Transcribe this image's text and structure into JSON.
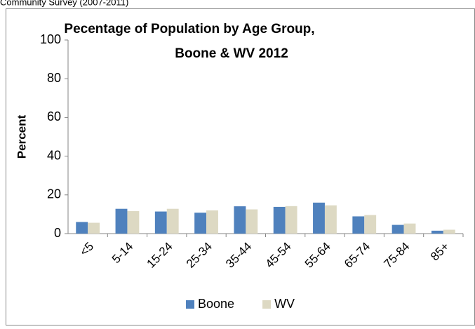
{
  "caption": "Community Survey (2007-2011)",
  "chart_data": {
    "type": "bar",
    "title": [
      "Pecentage of Population by Age Group,",
      "Boone & WV 2012"
    ],
    "y_label": "Percent",
    "categories": [
      "<5",
      "5-14",
      "15-24",
      "25-34",
      "35-44",
      "45-54",
      "55-64",
      "65-74",
      "75-84",
      "85+"
    ],
    "series": [
      {
        "name": "Boone",
        "color": "#4f81bd",
        "values": [
          6.0,
          12.8,
          11.4,
          10.8,
          14.1,
          13.8,
          16.0,
          8.9,
          4.5,
          1.5
        ]
      },
      {
        "name": "WV",
        "color": "#ddd9c3",
        "values": [
          5.6,
          11.6,
          12.8,
          12.0,
          12.5,
          14.2,
          14.6,
          9.6,
          5.2,
          2.0
        ]
      }
    ],
    "ylim": [
      0,
      100
    ],
    "yticks": [
      0,
      20,
      40,
      60,
      80,
      100
    ],
    "grid": false,
    "legend": "bottom"
  }
}
